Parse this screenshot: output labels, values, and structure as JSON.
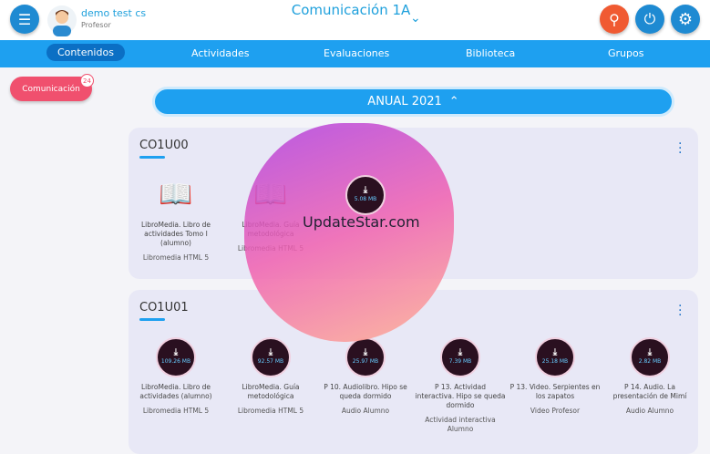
{
  "header": {
    "user_name": "demo test cs",
    "user_role": "Profesor",
    "course_title": "Comunicación 1A",
    "menu_icon": "hamburger-icon",
    "search_icon": "search-icon",
    "power_icon": "power-icon",
    "settings_icon": "gear-icon",
    "colors": {
      "accent": "#1ea0f0",
      "search": "#f05a32"
    }
  },
  "nav": {
    "tabs": [
      "Contenidos",
      "Actividades",
      "Evaluaciones",
      "Biblioteca",
      "Grupos"
    ],
    "active": "Contenidos"
  },
  "sidebar": {
    "subject": "Comunicación",
    "count": "24"
  },
  "year_label": "ANUAL 2021",
  "units": [
    {
      "title": "CO1U00",
      "items": [
        {
          "kind": "book",
          "title": "LibroMedia. Libro de actividades Tomo I (alumno)",
          "type": "Libromedia HTML 5"
        },
        {
          "kind": "book",
          "title": "LibroMedia. Guía metodológica",
          "type": "Libromedia HTML 5"
        },
        {
          "kind": "download",
          "size": "5.08 MB",
          "title": "",
          "type": ""
        }
      ]
    },
    {
      "title": "CO1U01",
      "items": [
        {
          "kind": "download",
          "size": "109.26 MB",
          "title": "LibroMedia. Libro de actividades (alumno)",
          "type": "Libromedia HTML 5"
        },
        {
          "kind": "download",
          "size": "92.57 MB",
          "title": "LibroMedia. Guía metodológica",
          "type": "Libromedia HTML 5"
        },
        {
          "kind": "download",
          "size": "25.97 MB",
          "title": "P 10. Audiolibro. Hipo se queda dormido",
          "type": "Audio Alumno"
        },
        {
          "kind": "download",
          "size": "7.39 MB",
          "title": "P 13. Actividad interactiva. Hipo se queda dormido",
          "type": "Actividad interactiva Alumno"
        },
        {
          "kind": "download",
          "size": "25.18 MB",
          "title": "P 13. Video. Serpientes en los zapatos",
          "type": "Video Profesor"
        },
        {
          "kind": "download",
          "size": "2.82 MB",
          "title": "P 14. Audio. La presentación de Mimí",
          "type": "Audio Alumno"
        }
      ]
    }
  ],
  "watermark": "UpdateStar.com"
}
